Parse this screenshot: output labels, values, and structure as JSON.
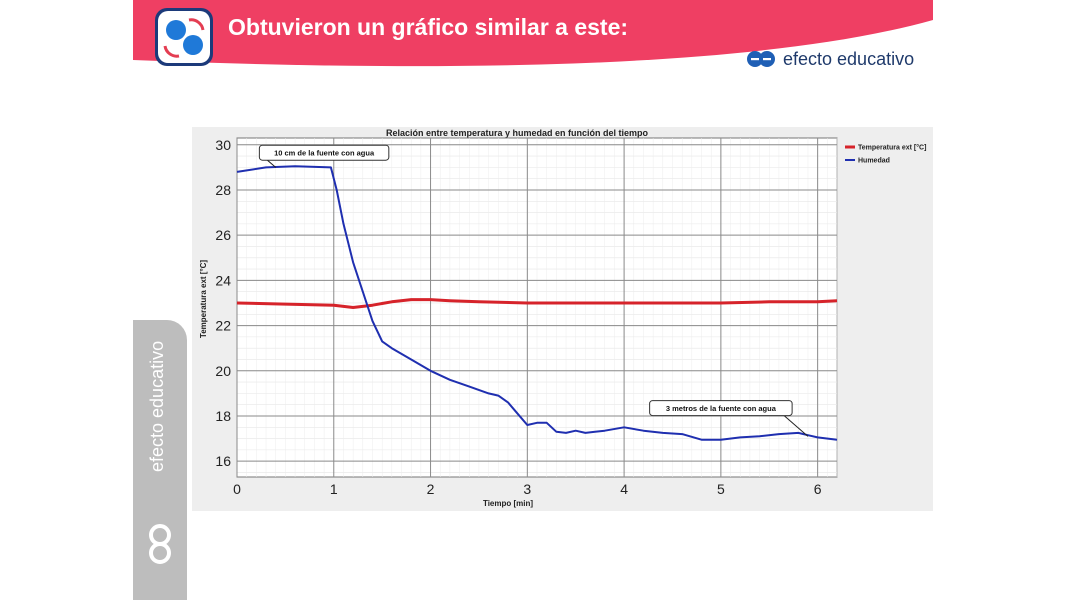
{
  "slide": {
    "title": "Obtuvieron un gráfico similar a este:",
    "brand": "efecto educativo",
    "side_brand": "efecto educativo",
    "banner_color": "#ef3f63"
  },
  "chart_data": {
    "type": "line",
    "title": "Relación entre temperatura y humedad en función del tiempo",
    "xlabel": "Tiempo [min]",
    "ylabel": "Temperatura ext [°C]",
    "xlim": [
      0,
      6.2
    ],
    "ylim": [
      15.3,
      30.3
    ],
    "xticks": [
      0,
      1,
      2,
      3,
      4,
      5,
      6
    ],
    "yticks": [
      16,
      18,
      20,
      22,
      24,
      26,
      28,
      30
    ],
    "grid": true,
    "legend_position": "top-right",
    "series": [
      {
        "name": "Temperatura ext [°C]",
        "color": "#d6232a",
        "x": [
          0,
          0.5,
          1.0,
          1.1,
          1.2,
          1.4,
          1.6,
          1.8,
          2.0,
          2.2,
          2.5,
          3.0,
          3.5,
          4.0,
          4.5,
          5.0,
          5.5,
          6.0,
          6.2
        ],
        "y": [
          23.0,
          22.95,
          22.9,
          22.85,
          22.8,
          22.9,
          23.05,
          23.15,
          23.15,
          23.1,
          23.05,
          23.0,
          23.0,
          23.0,
          23.0,
          23.0,
          23.05,
          23.05,
          23.1
        ]
      },
      {
        "name": "Humedad",
        "color": "#1f2fb0",
        "x": [
          0,
          0.3,
          0.6,
          0.97,
          1.03,
          1.1,
          1.2,
          1.3,
          1.4,
          1.5,
          1.6,
          1.8,
          2.0,
          2.2,
          2.4,
          2.6,
          2.7,
          2.8,
          2.9,
          3.0,
          3.1,
          3.2,
          3.3,
          3.4,
          3.5,
          3.6,
          3.7,
          3.8,
          4.0,
          4.2,
          4.4,
          4.6,
          4.8,
          5.0,
          5.2,
          5.4,
          5.6,
          5.8,
          5.9,
          6.0,
          6.2
        ],
        "y": [
          28.8,
          29.0,
          29.05,
          29.0,
          28.0,
          26.5,
          24.8,
          23.5,
          22.2,
          21.3,
          21.0,
          20.5,
          20.0,
          19.6,
          19.3,
          19.0,
          18.9,
          18.6,
          18.1,
          17.6,
          17.7,
          17.7,
          17.3,
          17.25,
          17.35,
          17.25,
          17.3,
          17.35,
          17.5,
          17.35,
          17.25,
          17.2,
          16.95,
          16.95,
          17.05,
          17.1,
          17.2,
          17.25,
          17.15,
          17.05,
          16.95
        ]
      }
    ],
    "annotations": [
      {
        "text": "10 cm de la fuente con agua",
        "x": 0.4,
        "y": 29.0
      },
      {
        "text": "3 metros de la fuente con agua",
        "x": 5.9,
        "y": 17.1
      }
    ]
  }
}
